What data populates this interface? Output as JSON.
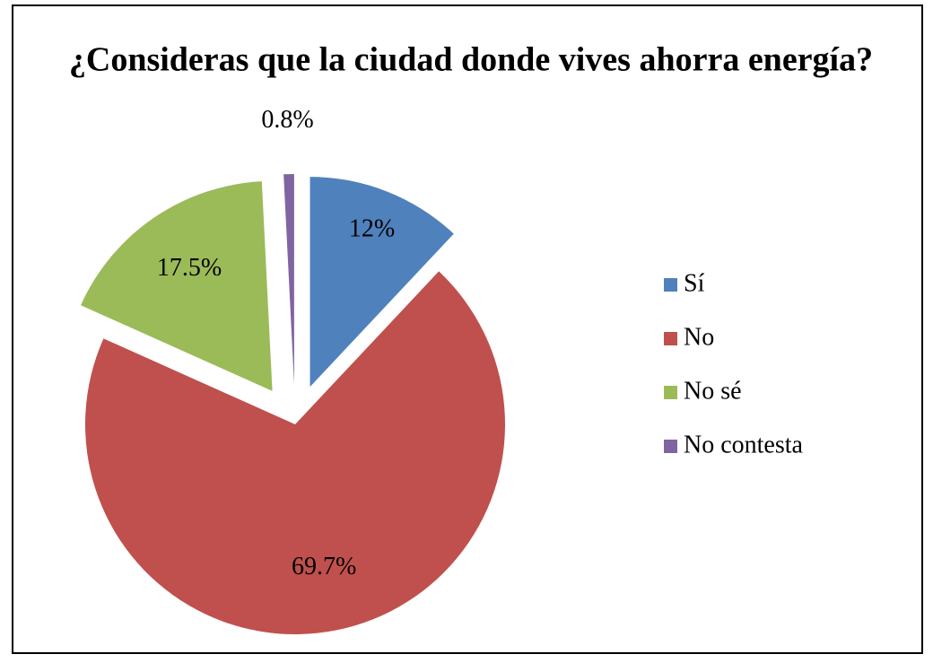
{
  "chart_data": {
    "type": "pie",
    "title": "¿Consideras que la ciudad donde vives ahorra energía?",
    "categories": [
      "Sí",
      "No",
      "No sé",
      "No contesta"
    ],
    "values": [
      12,
      69.7,
      17.5,
      0.8
    ],
    "value_labels": [
      "12%",
      "69.7%",
      "17.5%",
      "0.8%"
    ],
    "colors": [
      "#4f81bd",
      "#c0504d",
      "#9bbb59",
      "#8064a2"
    ],
    "legend": "right"
  }
}
